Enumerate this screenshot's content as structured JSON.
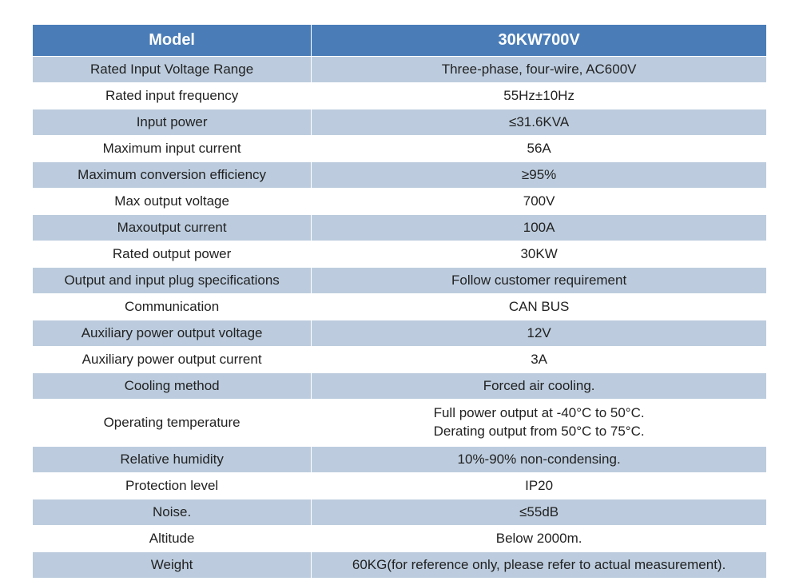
{
  "table": {
    "header_bg": "#4a7db8",
    "header_text_color": "#ffffff",
    "alt_row_bg": "#bcccde",
    "plain_row_bg": "#ffffff",
    "border_color": "#ffffff",
    "columns": [
      {
        "label": "Model",
        "width_pct": 38
      },
      {
        "label": "30KW700V",
        "width_pct": 62
      }
    ],
    "rows": [
      {
        "label": "Rated Input Voltage Range",
        "value": "Three-phase, four-wire, AC600V",
        "alt": true
      },
      {
        "label": "Rated input frequency",
        "value": "55Hz±10Hz",
        "alt": false
      },
      {
        "label": "Input power",
        "value": "≤31.6KVA",
        "alt": true
      },
      {
        "label": "Maximum input current",
        "value": "56A",
        "alt": false
      },
      {
        "label": "Maximum conversion efficiency",
        "value": "≥95%",
        "alt": true
      },
      {
        "label": "Max output voltage",
        "value": "700V",
        "alt": false
      },
      {
        "label": "Maxoutput current",
        "value": "100A",
        "alt": true
      },
      {
        "label": "Rated output power",
        "value": "30KW",
        "alt": false
      },
      {
        "label": "Output and input plug specifications",
        "value": "Follow customer requirement",
        "alt": true
      },
      {
        "label": "Communication",
        "value": "CAN BUS",
        "alt": false
      },
      {
        "label": "Auxiliary power output voltage",
        "value": "12V",
        "alt": true
      },
      {
        "label": "Auxiliary power output current",
        "value": "3A",
        "alt": false
      },
      {
        "label": "Cooling method",
        "value": "Forced air cooling.",
        "alt": true
      },
      {
        "label": "Operating temperature",
        "value": "Full power output at -40°C to 50°C.\nDerating output from 50°C to 75°C.",
        "alt": false,
        "multiline": true
      },
      {
        "label": "Relative humidity",
        "value": "10%-90% non-condensing.",
        "alt": true
      },
      {
        "label": "Protection level",
        "value": "IP20",
        "alt": false
      },
      {
        "label": "Noise.",
        "value": "≤55dB",
        "alt": true
      },
      {
        "label": "Altitude",
        "value": "Below 2000m.",
        "alt": false
      },
      {
        "label": "Weight",
        "value": "60KG(for reference only, please refer to actual measurement).",
        "alt": true
      }
    ]
  }
}
